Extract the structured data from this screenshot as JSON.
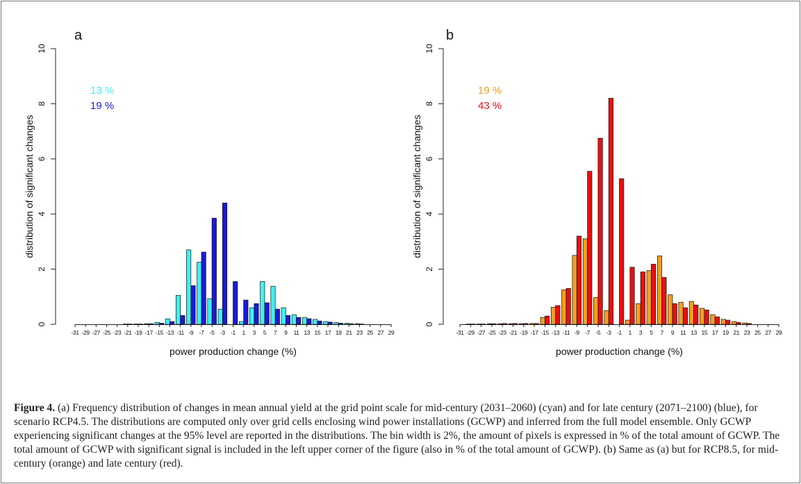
{
  "chart_data": [
    {
      "type": "bar",
      "panel_label": "a",
      "xlabel": "power production change (%)",
      "ylabel": "distribution of significant changes",
      "categories": [
        "-31",
        "-29",
        "-27",
        "-25",
        "-23",
        "-21",
        "-19",
        "-17",
        "-15",
        "-13",
        "-11",
        "-9",
        "-7",
        "-5",
        "-3",
        "-1",
        "1",
        "3",
        "5",
        "7",
        "9",
        "11",
        "13",
        "15",
        "17",
        "19",
        "21",
        "23",
        "25",
        "27",
        "29"
      ],
      "series": [
        {
          "color": "#40f0f0",
          "values": [
            0,
            0,
            0,
            0,
            0,
            0.01,
            0.01,
            0.02,
            0.07,
            0.2,
            1.05,
            2.7,
            2.25,
            0.93,
            0.55,
            0,
            0.1,
            0.6,
            1.55,
            1.38,
            0.6,
            0.35,
            0.25,
            0.18,
            0.1,
            0.06,
            0.04,
            0.02,
            0,
            0,
            0
          ]
        },
        {
          "color": "#1a1ad8",
          "values": [
            0,
            0,
            0,
            0,
            0,
            0.01,
            0.01,
            0.02,
            0.04,
            0.1,
            0.32,
            1.4,
            2.62,
            3.85,
            4.4,
            1.55,
            0.88,
            0.75,
            0.78,
            0.55,
            0.32,
            0.25,
            0.2,
            0.12,
            0.08,
            0.04,
            0.02,
            0.01,
            0,
            0,
            0
          ]
        }
      ],
      "annotations": [
        {
          "text": "13 %",
          "color": "#40f0f0"
        },
        {
          "text": "19 %",
          "color": "#1a1ad8"
        }
      ],
      "ylim": [
        0,
        10
      ],
      "yticks": [
        0,
        2,
        4,
        6,
        8,
        10
      ]
    },
    {
      "type": "bar",
      "panel_label": "b",
      "xlabel": "power production change (%)",
      "ylabel": "distribution of significant changes",
      "categories": [
        "-31",
        "-29",
        "-27",
        "-25",
        "-23",
        "-21",
        "-19",
        "-17",
        "-15",
        "-13",
        "-11",
        "-9",
        "-7",
        "-5",
        "-3",
        "-1",
        "1",
        "3",
        "5",
        "7",
        "9",
        "11",
        "13",
        "15",
        "17",
        "19",
        "21",
        "23",
        "25",
        "27",
        "29"
      ],
      "series": [
        {
          "color": "#f0a020",
          "values": [
            0,
            0.01,
            0.01,
            0.02,
            0.02,
            0.02,
            0.02,
            0.03,
            0.25,
            0.62,
            1.25,
            2.5,
            3.1,
            0.97,
            0.5,
            0,
            0.15,
            0.75,
            1.95,
            2.48,
            1.07,
            0.8,
            0.83,
            0.58,
            0.35,
            0.18,
            0.1,
            0.05,
            0,
            0,
            0
          ]
        },
        {
          "color": "#e81010",
          "values": [
            0,
            0.01,
            0.01,
            0.02,
            0.03,
            0.03,
            0.03,
            0.03,
            0.3,
            0.68,
            1.3,
            3.2,
            5.55,
            6.75,
            8.2,
            5.28,
            2.07,
            1.9,
            2.18,
            1.7,
            0.75,
            0.6,
            0.7,
            0.52,
            0.27,
            0.15,
            0.07,
            0.03,
            0,
            0,
            0
          ]
        }
      ],
      "annotations": [
        {
          "text": "19 %",
          "color": "#f0a020"
        },
        {
          "text": "43 %",
          "color": "#e81010"
        }
      ],
      "ylim": [
        0,
        10
      ],
      "yticks": [
        0,
        2,
        4,
        6,
        8,
        10
      ]
    }
  ],
  "caption": {
    "label": "Figure 4.",
    "text": " (a) Frequency distribution of changes in mean annual yield at the grid point scale for mid-century (2031–2060) (cyan) and for late century (2071–2100) (blue), for scenario RCP4.5. The distributions are computed only over grid cells enclosing wind power installations (GCWP) and inferred from the full model ensemble. Only GCWP experiencing significant changes at the 95% level are reported in the distributions. The bin width is 2%, the amount of pixels is expressed in % of the total amount of GCWP. The total amount of GCWP with significant signal is included in the left upper corner of the figure (also in % of the total amount of GCWP). (b) Same as (a) but for RCP8.5, for mid-century (orange) and late century (red)."
  }
}
